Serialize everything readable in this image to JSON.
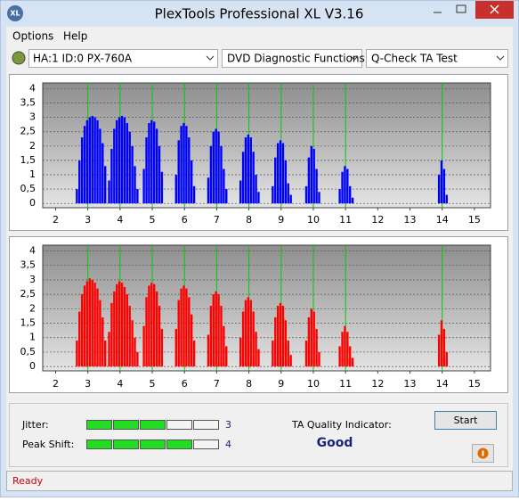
{
  "app_icon": "XL",
  "title": "PlexTools Professional XL V3.16",
  "menu": [
    "Options",
    "Help"
  ],
  "toolbar": [
    "HA:1 ID:0  PX-760A",
    "DVD Diagnostic Functions",
    "Q-Check TA Test"
  ],
  "chart_data": [
    {
      "type": "bar",
      "color": "#0000ff",
      "marker_color": "#00cc00",
      "xlim": [
        1.6,
        15.5
      ],
      "ylim": [
        -0.15,
        4.2
      ],
      "xticks": [
        2,
        3,
        4,
        5,
        6,
        7,
        8,
        9,
        10,
        11,
        12,
        13,
        14,
        15
      ],
      "yticks": [
        0,
        {
          "value": 0.5,
          "label": "0,5"
        },
        1,
        {
          "value": 1.5,
          "label": "1,5"
        },
        2,
        {
          "value": 2.5,
          "label": "2,5"
        },
        3,
        {
          "value": 3.5,
          "label": "3,5"
        },
        4
      ],
      "markers": [
        3,
        4,
        5,
        6,
        7,
        8,
        9,
        10,
        11,
        14
      ],
      "x": [
        2.66,
        2.74,
        2.82,
        2.9,
        2.98,
        3.06,
        3.14,
        3.22,
        3.3,
        3.38,
        3.46,
        3.54,
        3.66,
        3.74,
        3.82,
        3.9,
        3.98,
        4.06,
        4.14,
        4.22,
        4.3,
        4.38,
        4.46,
        4.54,
        4.74,
        4.82,
        4.9,
        4.98,
        5.06,
        5.14,
        5.22,
        5.3,
        5.74,
        5.82,
        5.9,
        5.98,
        6.06,
        6.14,
        6.22,
        6.3,
        6.74,
        6.82,
        6.9,
        6.98,
        7.06,
        7.14,
        7.22,
        7.3,
        7.74,
        7.82,
        7.9,
        7.98,
        8.06,
        8.14,
        8.22,
        8.3,
        8.74,
        8.82,
        8.9,
        8.98,
        9.06,
        9.14,
        9.22,
        9.3,
        9.78,
        9.86,
        9.94,
        10.02,
        10.1,
        10.18,
        10.82,
        10.9,
        10.98,
        11.06,
        11.14,
        11.22,
        13.9,
        13.98,
        14.06,
        14.14
      ],
      "values": [
        0.5,
        1.5,
        2.3,
        2.7,
        2.9,
        3.0,
        3.05,
        3.0,
        2.9,
        2.6,
        2.1,
        1.3,
        0.8,
        1.9,
        2.6,
        2.9,
        3.0,
        3.05,
        3.0,
        2.8,
        2.5,
        2.0,
        1.3,
        0.5,
        1.2,
        2.3,
        2.8,
        2.9,
        2.85,
        2.6,
        2.0,
        1.1,
        1.0,
        2.2,
        2.7,
        2.8,
        2.7,
        2.3,
        1.5,
        0.6,
        0.9,
        2.0,
        2.5,
        2.6,
        2.5,
        2.0,
        1.2,
        0.5,
        0.8,
        1.8,
        2.3,
        2.4,
        2.3,
        1.8,
        1.0,
        0.4,
        0.6,
        1.6,
        2.1,
        2.2,
        2.1,
        1.5,
        0.7,
        0.3,
        0.6,
        1.6,
        2.0,
        1.9,
        1.2,
        0.4,
        0.5,
        1.1,
        1.3,
        1.2,
        0.6,
        0.2,
        1.0,
        1.5,
        1.2,
        0.3
      ]
    },
    {
      "type": "bar",
      "color": "#ff0000",
      "marker_color": "#00cc00",
      "xlim": [
        1.6,
        15.5
      ],
      "ylim": [
        -0.15,
        4.2
      ],
      "xticks": [
        2,
        3,
        4,
        5,
        6,
        7,
        8,
        9,
        10,
        11,
        12,
        13,
        14,
        15
      ],
      "yticks": [
        0,
        {
          "value": 0.5,
          "label": "0,5"
        },
        1,
        {
          "value": 1.5,
          "label": "1,5"
        },
        2,
        {
          "value": 2.5,
          "label": "2,5"
        },
        3,
        {
          "value": 3.5,
          "label": "3,5"
        },
        4
      ],
      "markers": [
        3,
        4,
        5,
        6,
        7,
        8,
        9,
        10,
        11,
        14
      ],
      "x": [
        2.66,
        2.74,
        2.82,
        2.9,
        2.98,
        3.06,
        3.14,
        3.22,
        3.3,
        3.38,
        3.46,
        3.54,
        3.66,
        3.74,
        3.82,
        3.9,
        3.98,
        4.06,
        4.14,
        4.22,
        4.3,
        4.38,
        4.46,
        4.54,
        4.74,
        4.82,
        4.9,
        4.98,
        5.06,
        5.14,
        5.22,
        5.3,
        5.74,
        5.82,
        5.9,
        5.98,
        6.06,
        6.14,
        6.22,
        6.3,
        6.74,
        6.82,
        6.9,
        6.98,
        7.06,
        7.14,
        7.22,
        7.3,
        7.74,
        7.82,
        7.9,
        7.98,
        8.06,
        8.14,
        8.22,
        8.3,
        8.74,
        8.82,
        8.9,
        8.98,
        9.06,
        9.14,
        9.22,
        9.3,
        9.78,
        9.86,
        9.94,
        10.02,
        10.1,
        10.18,
        10.82,
        10.9,
        10.98,
        11.06,
        11.14,
        11.22,
        13.9,
        13.98,
        14.06,
        14.14
      ],
      "values": [
        0.9,
        1.9,
        2.5,
        2.8,
        2.95,
        3.05,
        3.0,
        2.9,
        2.7,
        2.3,
        1.7,
        0.9,
        1.2,
        2.2,
        2.6,
        2.85,
        2.95,
        2.9,
        2.75,
        2.5,
        2.1,
        1.6,
        1.0,
        0.5,
        1.4,
        2.4,
        2.8,
        2.9,
        2.85,
        2.6,
        2.1,
        1.3,
        1.3,
        2.3,
        2.7,
        2.8,
        2.7,
        2.4,
        1.8,
        0.9,
        1.1,
        2.1,
        2.5,
        2.6,
        2.5,
        2.1,
        1.4,
        0.7,
        1.0,
        1.9,
        2.3,
        2.4,
        2.3,
        1.9,
        1.2,
        0.6,
        0.9,
        1.7,
        2.1,
        2.2,
        2.1,
        1.6,
        0.9,
        0.4,
        0.9,
        1.7,
        2.0,
        1.9,
        1.3,
        0.5,
        0.7,
        1.2,
        1.4,
        1.2,
        0.7,
        0.3,
        1.1,
        1.6,
        1.3,
        0.5
      ]
    }
  ],
  "jitter": {
    "label": "Jitter:",
    "value": 3
  },
  "peak_shift": {
    "label": "Peak Shift:",
    "value": 4
  },
  "quality": {
    "label": "TA Quality Indicator:",
    "result": "Good"
  },
  "start_button": "Start",
  "status": "Ready"
}
